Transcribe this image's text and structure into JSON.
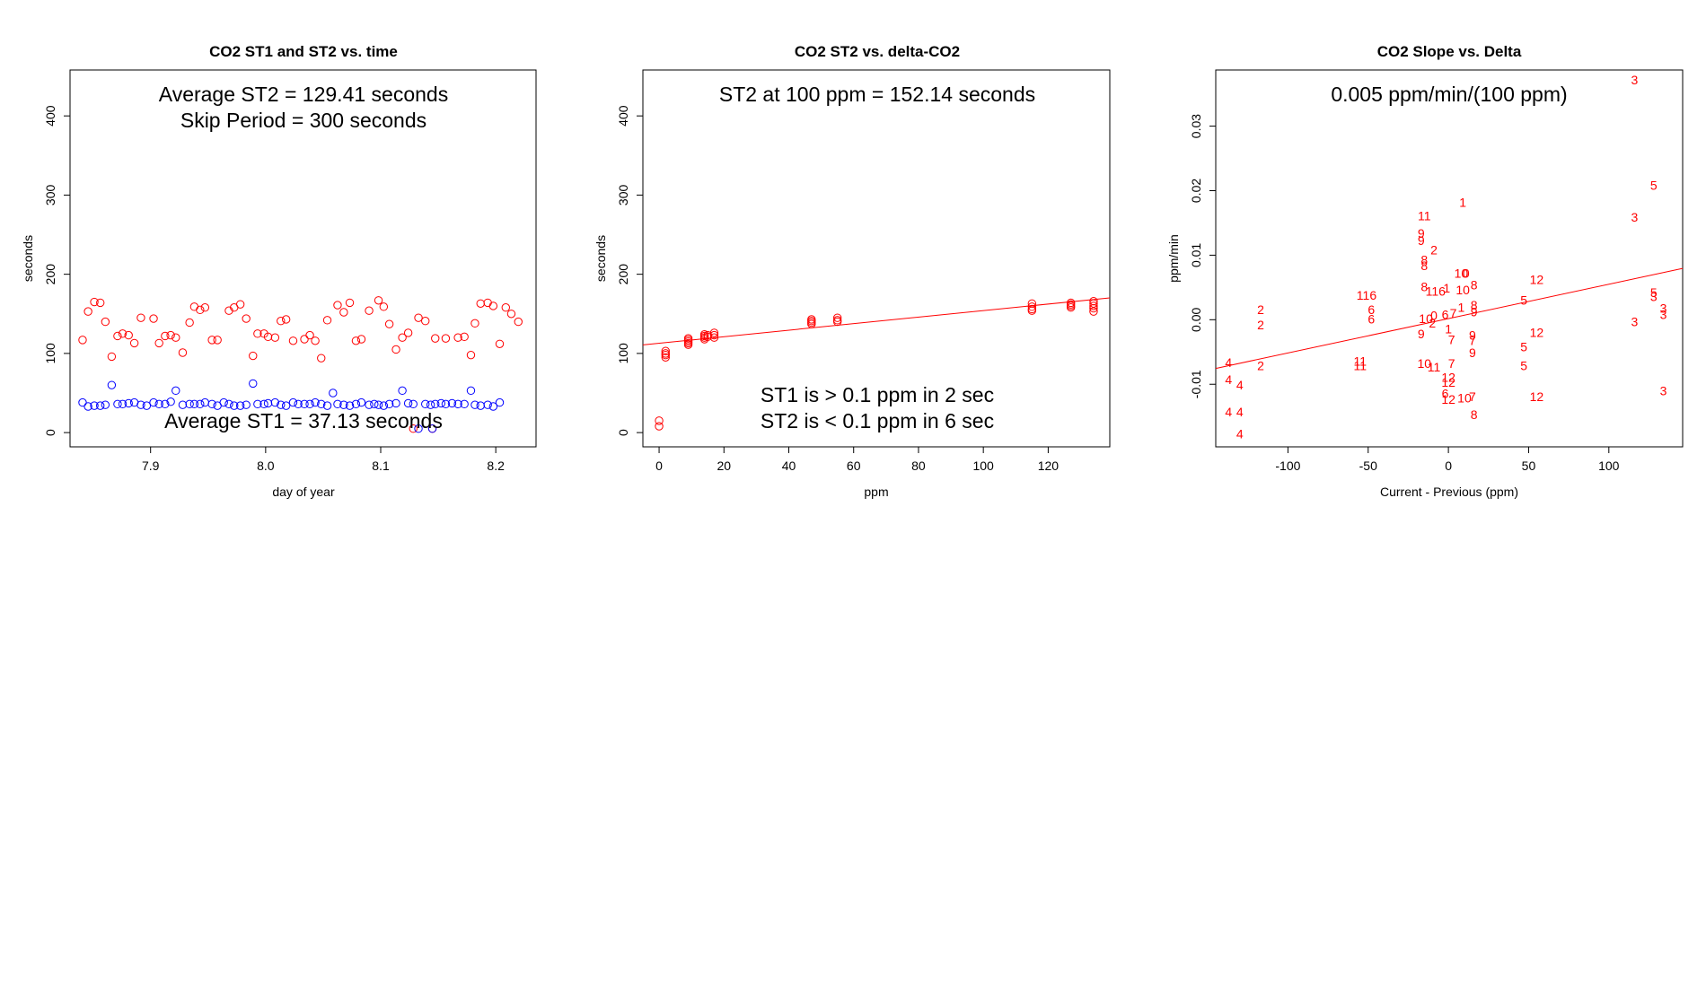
{
  "colors": {
    "st1": "#0000ff",
    "st2": "#ff0000",
    "fit": "#ff0000",
    "axis": "#000000"
  },
  "chart_data": [
    {
      "type": "scatter",
      "title": "CO2 ST1 and ST2 vs. time",
      "xlabel": "day of year",
      "ylabel": "seconds",
      "xlim": [
        7.83,
        8.235
      ],
      "ylim": [
        -18,
        458
      ],
      "xticks": [
        7.9,
        8.0,
        8.1,
        8.2
      ],
      "xtick_labels": [
        "7.9",
        "8.0",
        "8.1",
        "8.2"
      ],
      "yticks": [
        0,
        100,
        200,
        300,
        400
      ],
      "ytick_labels": [
        "0",
        "100",
        "200",
        "300",
        "400"
      ],
      "annotations": [
        {
          "text": "Average ST2 =  129.41  seconds",
          "position": "top"
        },
        {
          "text": "Skip Period =  300  seconds",
          "position": "top"
        },
        {
          "text": "Average ST1 =  37.13  seconds",
          "position": "bottom"
        }
      ],
      "series": [
        {
          "name": "ST2",
          "color": "#ff0000",
          "x": [
            7.8409,
            7.8457,
            7.8511,
            7.8563,
            7.8607,
            7.8662,
            7.8713,
            7.8757,
            7.8809,
            7.8859,
            7.8916,
            7.9026,
            7.9074,
            7.9126,
            7.9175,
            7.9219,
            7.9279,
            7.9339,
            7.938,
            7.943,
            7.9473,
            7.9534,
            7.9581,
            7.9681,
            7.9726,
            7.978,
            7.9831,
            7.989,
            7.993,
            7.9986,
            8.0021,
            8.0082,
            8.0132,
            8.0178,
            8.0239,
            8.0337,
            8.0384,
            8.0431,
            8.0483,
            8.0536,
            8.0625,
            8.0679,
            8.0731,
            8.0785,
            8.0832,
            8.0899,
            8.0981,
            8.1026,
            8.1075,
            8.1133,
            8.1188,
            8.1239,
            8.1283,
            8.1328,
            8.1388,
            8.1474,
            8.1565,
            8.1672,
            8.1727,
            8.1784,
            8.1819,
            8.1868,
            8.193,
            8.1978,
            8.2034,
            8.2087,
            8.2135,
            8.2196
          ],
          "y": [
            117,
            153,
            165,
            164,
            140,
            96,
            122,
            125,
            123,
            113,
            145,
            144,
            113,
            122,
            123,
            120,
            101,
            139,
            159,
            155,
            158,
            117,
            117,
            154,
            158,
            162,
            144,
            97,
            125,
            125,
            121,
            120,
            141,
            143,
            116,
            118,
            123,
            116,
            94,
            142,
            161,
            152,
            164,
            116,
            118,
            154,
            167,
            159,
            137,
            105,
            120,
            126,
            5,
            145,
            141,
            119,
            119,
            120,
            121,
            98,
            138,
            163,
            164,
            160,
            112,
            158,
            150,
            140
          ],
          "x_sort_note": "points as read from plot"
        },
        {
          "name": "ST1",
          "color": "#0000ff",
          "x": [
            7.8409,
            7.8457,
            7.8511,
            7.8563,
            7.8607,
            7.8662,
            7.8713,
            7.8757,
            7.8809,
            7.8859,
            7.8916,
            7.8966,
            7.9026,
            7.9074,
            7.9126,
            7.9175,
            7.9219,
            7.9279,
            7.9339,
            7.938,
            7.943,
            7.9473,
            7.9534,
            7.9581,
            7.9636,
            7.9681,
            7.9726,
            7.978,
            7.9831,
            7.989,
            7.993,
            7.9986,
            8.0021,
            8.0082,
            8.0132,
            8.0178,
            8.0239,
            8.0283,
            8.0337,
            8.0384,
            8.0431,
            8.0483,
            8.0536,
            8.0585,
            8.0625,
            8.0679,
            8.0731,
            8.0785,
            8.0832,
            8.0899,
            8.0944,
            8.0981,
            8.1026,
            8.1075,
            8.1133,
            8.1188,
            8.1239,
            8.1283,
            8.1328,
            8.1388,
            8.1434,
            8.1474,
            8.1525,
            8.1565,
            8.162,
            8.1672,
            8.1727,
            8.1784,
            8.1819,
            8.1868,
            8.193,
            8.1978,
            8.2034
          ],
          "y": [
            38,
            33,
            34,
            34,
            35,
            60,
            36,
            36,
            37,
            38,
            35,
            34,
            38,
            36,
            36,
            39,
            53,
            35,
            36,
            36,
            36,
            38,
            36,
            34,
            38,
            36,
            34,
            34,
            35,
            62,
            36,
            36,
            37,
            38,
            35,
            34,
            38,
            36,
            36,
            36,
            38,
            36,
            34,
            50,
            36,
            35,
            34,
            36,
            38,
            35,
            36,
            35,
            34,
            36,
            37,
            53,
            37,
            36,
            5,
            36,
            35,
            36,
            37,
            36,
            37,
            36,
            36,
            53,
            35,
            34,
            35,
            33,
            38
          ]
        }
      ],
      "overlap_points": [
        {
          "x": 8.1449,
          "y": 5,
          "colors": [
            "#ff0000",
            "#0000ff"
          ]
        }
      ]
    },
    {
      "type": "scatter",
      "title": "CO2 ST2 vs. delta-CO2",
      "xlabel": "ppm",
      "ylabel": "seconds",
      "xlim": [
        -5,
        139
      ],
      "ylim": [
        -18,
        458
      ],
      "xticks": [
        0,
        20,
        40,
        60,
        80,
        100,
        120
      ],
      "xtick_labels": [
        "0",
        "20",
        "40",
        "60",
        "80",
        "100",
        "120"
      ],
      "yticks": [
        0,
        100,
        200,
        300,
        400
      ],
      "ytick_labels": [
        "0",
        "100",
        "200",
        "300",
        "400"
      ],
      "annotations": [
        {
          "text": "ST2 at 100 ppm =  152.14  seconds",
          "position": "top"
        },
        {
          "text": "ST1 is > 0.1 ppm in 2 sec",
          "position": "bottom"
        },
        {
          "text": "ST2 is < 0.1 ppm in 6 sec",
          "position": "bottom"
        }
      ],
      "series": [
        {
          "name": "ST2",
          "color": "#ff0000",
          "x": [
            0,
            0,
            2,
            2,
            2,
            2,
            9,
            9,
            9,
            9,
            9,
            14,
            14,
            14,
            14,
            15,
            15,
            17,
            17,
            17,
            47,
            47,
            47,
            47,
            55,
            55,
            55,
            115,
            115,
            115,
            115,
            127,
            127,
            127,
            127,
            134,
            134,
            134,
            134,
            134
          ],
          "y": [
            8,
            15,
            95,
            98,
            100,
            103,
            111,
            113,
            115,
            117,
            119,
            118,
            120,
            122,
            124,
            121,
            123,
            120,
            123,
            126,
            137,
            139,
            141,
            143,
            140,
            142,
            145,
            154,
            156,
            159,
            163,
            158,
            160,
            162,
            164,
            153,
            157,
            160,
            163,
            166
          ]
        }
      ],
      "fit_line": {
        "x": [
          -5,
          139
        ],
        "y": [
          110.8,
          170.2
        ],
        "color": "#ff0000"
      }
    },
    {
      "type": "scatter",
      "title": "CO2 Slope vs. Delta",
      "xlabel": "Current - Previous (ppm)",
      "ylabel": "ppm/min",
      "xlim": [
        -145,
        146
      ],
      "ylim": [
        -0.0197,
        0.0387
      ],
      "xticks": [
        -100,
        -50,
        0,
        50,
        100
      ],
      "xtick_labels": [
        "-100",
        "-50",
        "0",
        "50",
        "100"
      ],
      "yticks": [
        -0.01,
        0.0,
        0.01,
        0.02,
        0.03
      ],
      "ytick_labels": [
        "-0.01",
        "0.00",
        "0.01",
        "0.02",
        "0.03"
      ],
      "annotations": [
        {
          "text": "0.005  ppm/min/(100 ppm)",
          "position": "top"
        }
      ],
      "point_labels": [
        {
          "x": 116,
          "y": 0.0372,
          "label": "3"
        },
        {
          "x": 128,
          "y": 0.0208,
          "label": "5"
        },
        {
          "x": 9,
          "y": 0.0182,
          "label": "1"
        },
        {
          "x": -15,
          "y": 0.0161,
          "label": "11"
        },
        {
          "x": 116,
          "y": 0.0159,
          "label": "3"
        },
        {
          "x": -17,
          "y": 0.0134,
          "label": "9"
        },
        {
          "x": -17,
          "y": 0.0123,
          "label": "9"
        },
        {
          "x": -9,
          "y": 0.0108,
          "label": "2"
        },
        {
          "x": -15,
          "y": 0.0093,
          "label": "8"
        },
        {
          "x": -15,
          "y": 0.0084,
          "label": "8"
        },
        {
          "x": 8,
          "y": 0.0072,
          "label": "10"
        },
        {
          "x": 11,
          "y": 0.0072,
          "label": "0"
        },
        {
          "x": 55,
          "y": 0.0062,
          "label": "12"
        },
        {
          "x": 16,
          "y": 0.0054,
          "label": "8"
        },
        {
          "x": -15,
          "y": 0.0051,
          "label": "8"
        },
        {
          "x": -1,
          "y": 0.0049,
          "label": "1"
        },
        {
          "x": -8,
          "y": 0.0044,
          "label": "116"
        },
        {
          "x": 9,
          "y": 0.0046,
          "label": "10"
        },
        {
          "x": 128,
          "y": 0.0042,
          "label": "5"
        },
        {
          "x": 128,
          "y": 0.0036,
          "label": "3"
        },
        {
          "x": -51,
          "y": 0.0038,
          "label": "116"
        },
        {
          "x": 47,
          "y": 0.003,
          "label": "5"
        },
        {
          "x": 16,
          "y": 0.0023,
          "label": "8"
        },
        {
          "x": 8,
          "y": 0.0019,
          "label": "1"
        },
        {
          "x": 134,
          "y": 0.0018,
          "label": "3"
        },
        {
          "x": -117,
          "y": 0.0016,
          "label": "2"
        },
        {
          "x": -48,
          "y": 0.0016,
          "label": "6"
        },
        {
          "x": 16,
          "y": 0.0012,
          "label": "9"
        },
        {
          "x": 3,
          "y": 0.001,
          "label": "7"
        },
        {
          "x": -2,
          "y": 0.0008,
          "label": "6"
        },
        {
          "x": -9,
          "y": 0.0007,
          "label": "0"
        },
        {
          "x": 134,
          "y": 0.0008,
          "label": "3"
        },
        {
          "x": -48,
          "y": 0.0001,
          "label": "6"
        },
        {
          "x": -117,
          "y": -0.0008,
          "label": "2"
        },
        {
          "x": -14,
          "y": 0.0002,
          "label": "10"
        },
        {
          "x": -10,
          "y": -0.0005,
          "label": "2"
        },
        {
          "x": 116,
          "y": -0.0003,
          "label": "3"
        },
        {
          "x": 0,
          "y": -0.0014,
          "label": "1"
        },
        {
          "x": 55,
          "y": -0.002,
          "label": "12"
        },
        {
          "x": -17,
          "y": -0.0022,
          "label": "9"
        },
        {
          "x": 15,
          "y": -0.0024,
          "label": "9"
        },
        {
          "x": 2,
          "y": -0.0031,
          "label": "7"
        },
        {
          "x": 15,
          "y": -0.0032,
          "label": "7"
        },
        {
          "x": 47,
          "y": -0.0042,
          "label": "5"
        },
        {
          "x": 15,
          "y": -0.0051,
          "label": "9"
        },
        {
          "x": -55,
          "y": -0.0064,
          "label": "11"
        },
        {
          "x": -15,
          "y": -0.0068,
          "label": "10"
        },
        {
          "x": -55,
          "y": -0.0071,
          "label": "11"
        },
        {
          "x": 2,
          "y": -0.0068,
          "label": "7"
        },
        {
          "x": -137,
          "y": -0.0066,
          "label": "4"
        },
        {
          "x": -117,
          "y": -0.0071,
          "label": "2"
        },
        {
          "x": 47,
          "y": -0.0071,
          "label": "5"
        },
        {
          "x": -9,
          "y": -0.0073,
          "label": "11"
        },
        {
          "x": 0,
          "y": -0.0089,
          "label": "12"
        },
        {
          "x": -137,
          "y": -0.0093,
          "label": "4"
        },
        {
          "x": 0,
          "y": -0.0097,
          "label": "12"
        },
        {
          "x": -130,
          "y": -0.0101,
          "label": "4"
        },
        {
          "x": 134,
          "y": -0.011,
          "label": "3"
        },
        {
          "x": 55,
          "y": -0.0119,
          "label": "12"
        },
        {
          "x": -2,
          "y": -0.0114,
          "label": "6"
        },
        {
          "x": 15,
          "y": -0.0119,
          "label": "7"
        },
        {
          "x": 0,
          "y": -0.0123,
          "label": "12"
        },
        {
          "x": 10,
          "y": -0.0121,
          "label": "10"
        },
        {
          "x": -137,
          "y": -0.0143,
          "label": "4"
        },
        {
          "x": -130,
          "y": -0.0143,
          "label": "4"
        },
        {
          "x": 16,
          "y": -0.0147,
          "label": "8"
        },
        {
          "x": -130,
          "y": -0.0177,
          "label": "4"
        }
      ],
      "point_color": "#ff0000",
      "fit_line": {
        "x": [
          -145,
          146
        ],
        "y": [
          -0.00755,
          0.00795
        ],
        "color": "#ff0000"
      }
    }
  ]
}
